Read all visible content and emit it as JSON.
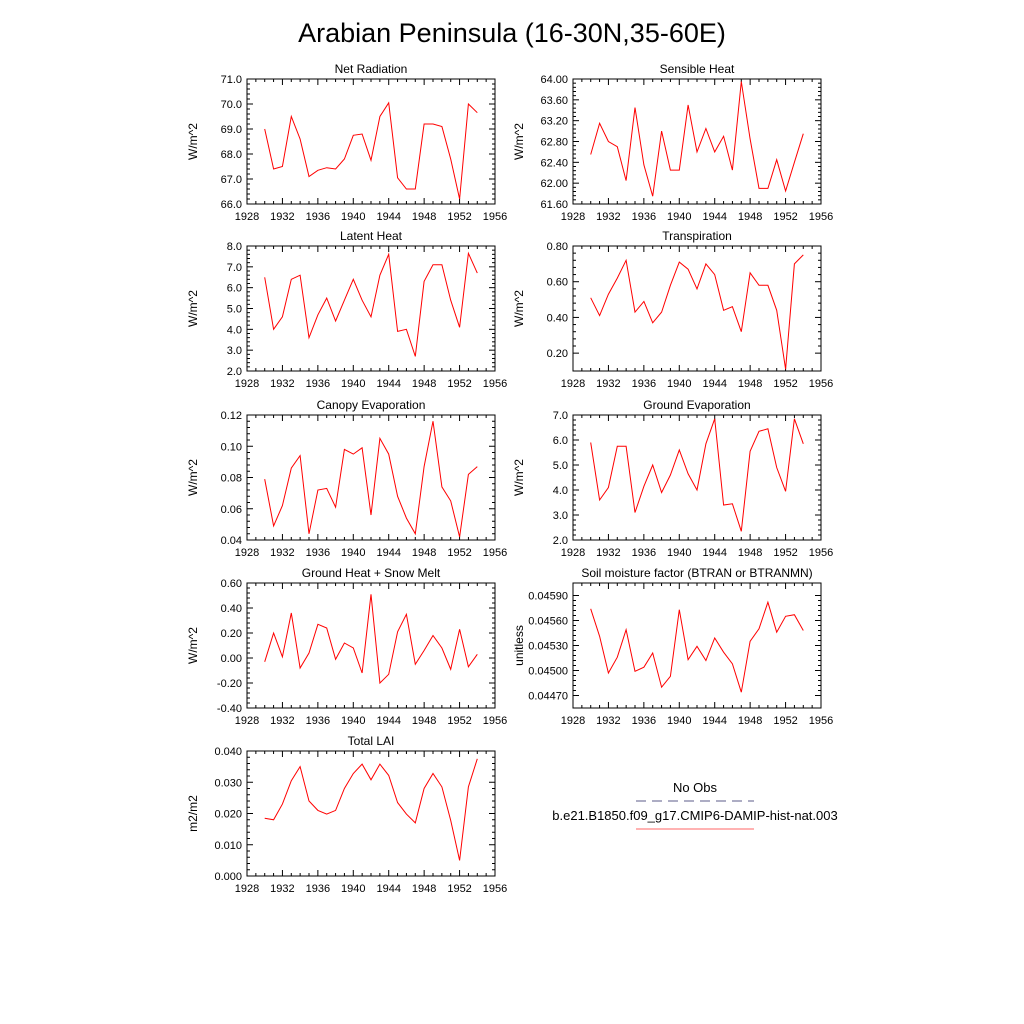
{
  "figure": {
    "title": "Arabian Peninsula (16-30N,35-60E)"
  },
  "x_axis": {
    "ticks": [
      "1928",
      "1932",
      "1936",
      "1940",
      "1944",
      "1948",
      "1952",
      "1956"
    ],
    "range": [
      1928,
      1956
    ]
  },
  "legend": {
    "entries": [
      {
        "label": "No Obs",
        "style": "dashed",
        "color": "#5b5b88"
      },
      {
        "label": "b.e21.B1850.f09_g17.CMIP6-DAMIP-hist-nat.003",
        "style": "solid",
        "color": "#ff6666"
      }
    ]
  },
  "colors": {
    "series": "#ff0000",
    "axis": "#000000"
  },
  "chart_data": [
    {
      "type": "line",
      "title": "Net Radiation",
      "ylabel": "W/m^2",
      "ylim": [
        66.0,
        71.0
      ],
      "yticks": [
        "66.0",
        "67.0",
        "68.0",
        "69.0",
        "70.0",
        "71.0"
      ],
      "x": [
        1930,
        1931,
        1932,
        1933,
        1934,
        1935,
        1936,
        1937,
        1938,
        1939,
        1940,
        1941,
        1942,
        1943,
        1944,
        1945,
        1946,
        1947,
        1948,
        1949,
        1950,
        1951,
        1952,
        1953,
        1954
      ],
      "values": [
        69.0,
        67.4,
        67.5,
        69.5,
        68.6,
        67.1,
        67.35,
        67.45,
        67.4,
        67.8,
        68.75,
        68.8,
        67.75,
        69.5,
        70.05,
        67.05,
        66.6,
        66.6,
        69.2,
        69.2,
        69.1,
        67.8,
        66.2,
        70.0,
        69.65
      ]
    },
    {
      "type": "line",
      "title": "Sensible Heat",
      "ylabel": "W/m^2",
      "ylim": [
        61.6,
        64.0
      ],
      "yticks": [
        "61.60",
        "62.00",
        "62.40",
        "62.80",
        "63.20",
        "63.60",
        "64.00"
      ],
      "x": [
        1930,
        1931,
        1932,
        1933,
        1934,
        1935,
        1936,
        1937,
        1938,
        1939,
        1940,
        1941,
        1942,
        1943,
        1944,
        1945,
        1946,
        1947,
        1948,
        1949,
        1950,
        1951,
        1952,
        1953,
        1954
      ],
      "values": [
        62.55,
        63.15,
        62.8,
        62.7,
        62.05,
        63.45,
        62.35,
        61.75,
        63.0,
        62.25,
        62.25,
        63.5,
        62.6,
        63.05,
        62.6,
        62.9,
        62.25,
        63.95,
        62.85,
        61.9,
        61.9,
        62.45,
        61.85,
        62.4,
        62.95
      ]
    },
    {
      "type": "line",
      "title": "Latent Heat",
      "ylabel": "W/m^2",
      "ylim": [
        2.0,
        8.0
      ],
      "yticks": [
        "2.0",
        "3.0",
        "4.0",
        "5.0",
        "6.0",
        "7.0",
        "8.0"
      ],
      "x": [
        1930,
        1931,
        1932,
        1933,
        1934,
        1935,
        1936,
        1937,
        1938,
        1939,
        1940,
        1941,
        1942,
        1943,
        1944,
        1945,
        1946,
        1947,
        1948,
        1949,
        1950,
        1951,
        1952,
        1953,
        1954
      ],
      "values": [
        6.5,
        4.0,
        4.6,
        6.4,
        6.6,
        3.6,
        4.7,
        5.5,
        4.4,
        5.4,
        6.4,
        5.4,
        4.6,
        6.6,
        7.6,
        3.9,
        4.0,
        2.7,
        6.3,
        7.1,
        7.1,
        5.4,
        4.1,
        7.65,
        6.7
      ]
    },
    {
      "type": "line",
      "title": "Transpiration",
      "ylabel": "W/m^2",
      "ylim": [
        0.1,
        0.8
      ],
      "yticks": [
        "0.20",
        "0.40",
        "0.60",
        "0.80"
      ],
      "x": [
        1930,
        1931,
        1932,
        1933,
        1934,
        1935,
        1936,
        1937,
        1938,
        1939,
        1940,
        1941,
        1942,
        1943,
        1944,
        1945,
        1946,
        1947,
        1948,
        1949,
        1950,
        1951,
        1952,
        1953,
        1954
      ],
      "values": [
        0.51,
        0.41,
        0.53,
        0.62,
        0.72,
        0.43,
        0.49,
        0.37,
        0.43,
        0.58,
        0.71,
        0.67,
        0.56,
        0.7,
        0.64,
        0.44,
        0.46,
        0.32,
        0.65,
        0.58,
        0.58,
        0.44,
        0.11,
        0.7,
        0.75
      ]
    },
    {
      "type": "line",
      "title": "Canopy Evaporation",
      "ylabel": "W/m^2",
      "ylim": [
        0.04,
        0.12
      ],
      "yticks": [
        "0.04",
        "0.06",
        "0.08",
        "0.10",
        "0.12"
      ],
      "x": [
        1930,
        1931,
        1932,
        1933,
        1934,
        1935,
        1936,
        1937,
        1938,
        1939,
        1940,
        1941,
        1942,
        1943,
        1944,
        1945,
        1946,
        1947,
        1948,
        1949,
        1950,
        1951,
        1952,
        1953,
        1954
      ],
      "values": [
        0.079,
        0.049,
        0.062,
        0.086,
        0.094,
        0.044,
        0.072,
        0.073,
        0.061,
        0.098,
        0.095,
        0.099,
        0.056,
        0.105,
        0.095,
        0.068,
        0.054,
        0.044,
        0.087,
        0.116,
        0.074,
        0.065,
        0.042,
        0.082,
        0.087
      ]
    },
    {
      "type": "line",
      "title": "Ground Evaporation",
      "ylabel": "W/m^2",
      "ylim": [
        2.0,
        7.0
      ],
      "yticks": [
        "2.0",
        "3.0",
        "4.0",
        "5.0",
        "6.0",
        "7.0"
      ],
      "x": [
        1930,
        1931,
        1932,
        1933,
        1934,
        1935,
        1936,
        1937,
        1938,
        1939,
        1940,
        1941,
        1942,
        1943,
        1944,
        1945,
        1946,
        1947,
        1948,
        1949,
        1950,
        1951,
        1952,
        1953,
        1954
      ],
      "values": [
        5.9,
        3.6,
        4.1,
        5.75,
        5.75,
        3.1,
        4.15,
        5.0,
        3.9,
        4.6,
        5.6,
        4.65,
        4.0,
        5.85,
        6.85,
        3.4,
        3.45,
        2.35,
        5.55,
        6.35,
        6.45,
        4.9,
        3.95,
        6.85,
        5.85
      ]
    },
    {
      "type": "line",
      "title": "Ground Heat + Snow Melt",
      "ylabel": "W/m^2",
      "ylim": [
        -0.4,
        0.6
      ],
      "yticks": [
        "-0.40",
        "-0.20",
        "0.00",
        "0.20",
        "0.40",
        "0.60"
      ],
      "x": [
        1930,
        1931,
        1932,
        1933,
        1934,
        1935,
        1936,
        1937,
        1938,
        1939,
        1940,
        1941,
        1942,
        1943,
        1944,
        1945,
        1946,
        1947,
        1948,
        1949,
        1950,
        1951,
        1952,
        1953,
        1954
      ],
      "values": [
        -0.03,
        0.2,
        0.01,
        0.36,
        -0.08,
        0.04,
        0.27,
        0.24,
        -0.01,
        0.12,
        0.08,
        -0.12,
        0.51,
        -0.2,
        -0.13,
        0.21,
        0.35,
        -0.05,
        0.06,
        0.18,
        0.08,
        -0.09,
        0.23,
        -0.07,
        0.03
      ]
    },
    {
      "type": "line",
      "title": "Soil moisture factor (BTRAN or BTRANMN)",
      "ylabel": "unitless",
      "ylim": [
        0.04455,
        0.04605
      ],
      "yticks": [
        "0.04470",
        "0.04500",
        "0.04530",
        "0.04560",
        "0.04590"
      ],
      "x": [
        1930,
        1931,
        1932,
        1933,
        1934,
        1935,
        1936,
        1937,
        1938,
        1939,
        1940,
        1941,
        1942,
        1943,
        1944,
        1945,
        1946,
        1947,
        1948,
        1949,
        1950,
        1951,
        1952,
        1953,
        1954
      ],
      "values": [
        0.04574,
        0.04541,
        0.04497,
        0.04516,
        0.04549,
        0.04499,
        0.04504,
        0.04521,
        0.0448,
        0.04493,
        0.04573,
        0.04513,
        0.04529,
        0.04512,
        0.04539,
        0.04522,
        0.04508,
        0.04474,
        0.04535,
        0.0455,
        0.04582,
        0.04546,
        0.04565,
        0.04567,
        0.04548
      ]
    },
    {
      "type": "line",
      "title": "Total LAI",
      "ylabel": "m2/m2",
      "ylim": [
        0.0,
        0.04
      ],
      "yticks": [
        "0.000",
        "0.010",
        "0.020",
        "0.030",
        "0.040"
      ],
      "x": [
        1930,
        1931,
        1932,
        1933,
        1934,
        1935,
        1936,
        1937,
        1938,
        1939,
        1940,
        1941,
        1942,
        1943,
        1944,
        1945,
        1946,
        1947,
        1948,
        1949,
        1950,
        1951,
        1952,
        1953,
        1954
      ],
      "values": [
        0.0185,
        0.018,
        0.023,
        0.0305,
        0.035,
        0.024,
        0.021,
        0.0198,
        0.021,
        0.028,
        0.0328,
        0.0358,
        0.0308,
        0.0358,
        0.0322,
        0.0235,
        0.0198,
        0.017,
        0.028,
        0.0328,
        0.0285,
        0.0178,
        0.005,
        0.0285,
        0.0375
      ]
    }
  ]
}
